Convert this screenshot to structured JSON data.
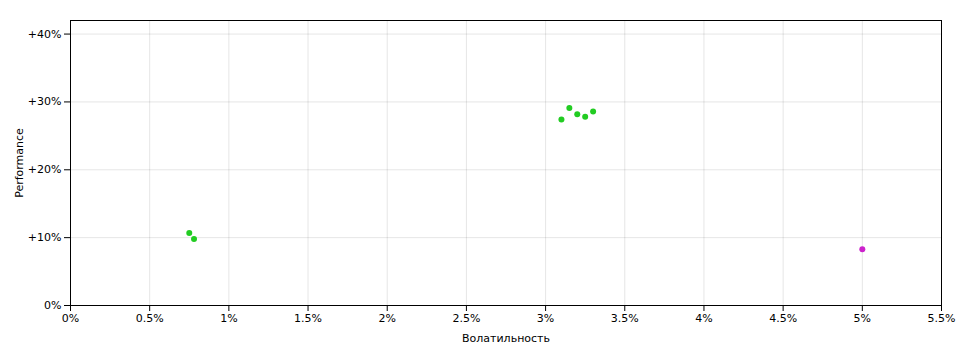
{
  "chart_data": {
    "type": "scatter",
    "xlabel": "Волатильность",
    "ylabel": "Performance",
    "xlim": [
      0.0,
      0.055
    ],
    "ylim": [
      0.0,
      0.42
    ],
    "xticks": [
      {
        "value": 0.0,
        "label": "0%"
      },
      {
        "value": 0.005,
        "label": "0.5%"
      },
      {
        "value": 0.01,
        "label": "1%"
      },
      {
        "value": 0.015,
        "label": "1.5%"
      },
      {
        "value": 0.02,
        "label": "2%"
      },
      {
        "value": 0.025,
        "label": "2.5%"
      },
      {
        "value": 0.03,
        "label": "3%"
      },
      {
        "value": 0.035,
        "label": "3.5%"
      },
      {
        "value": 0.04,
        "label": "4%"
      },
      {
        "value": 0.045,
        "label": "4.5%"
      },
      {
        "value": 0.05,
        "label": "5%"
      },
      {
        "value": 0.055,
        "label": "5.5%"
      }
    ],
    "yticks": [
      {
        "value": 0.0,
        "label": "0%"
      },
      {
        "value": 0.1,
        "label": "+10%"
      },
      {
        "value": 0.2,
        "label": "+20%"
      },
      {
        "value": 0.3,
        "label": "+30%"
      },
      {
        "value": 0.4,
        "label": "+40%"
      }
    ],
    "grid": true,
    "series": [
      {
        "color": "#22cc22",
        "x": [
          0.031,
          0.032,
          0.0315,
          0.033,
          0.0325,
          0.0075,
          0.0078
        ],
        "values": [
          0.274,
          0.282,
          0.291,
          0.286,
          0.278,
          0.107,
          0.098
        ]
      },
      {
        "color": "#cc22cc",
        "x": [
          0.05
        ],
        "values": [
          0.083
        ]
      }
    ]
  }
}
